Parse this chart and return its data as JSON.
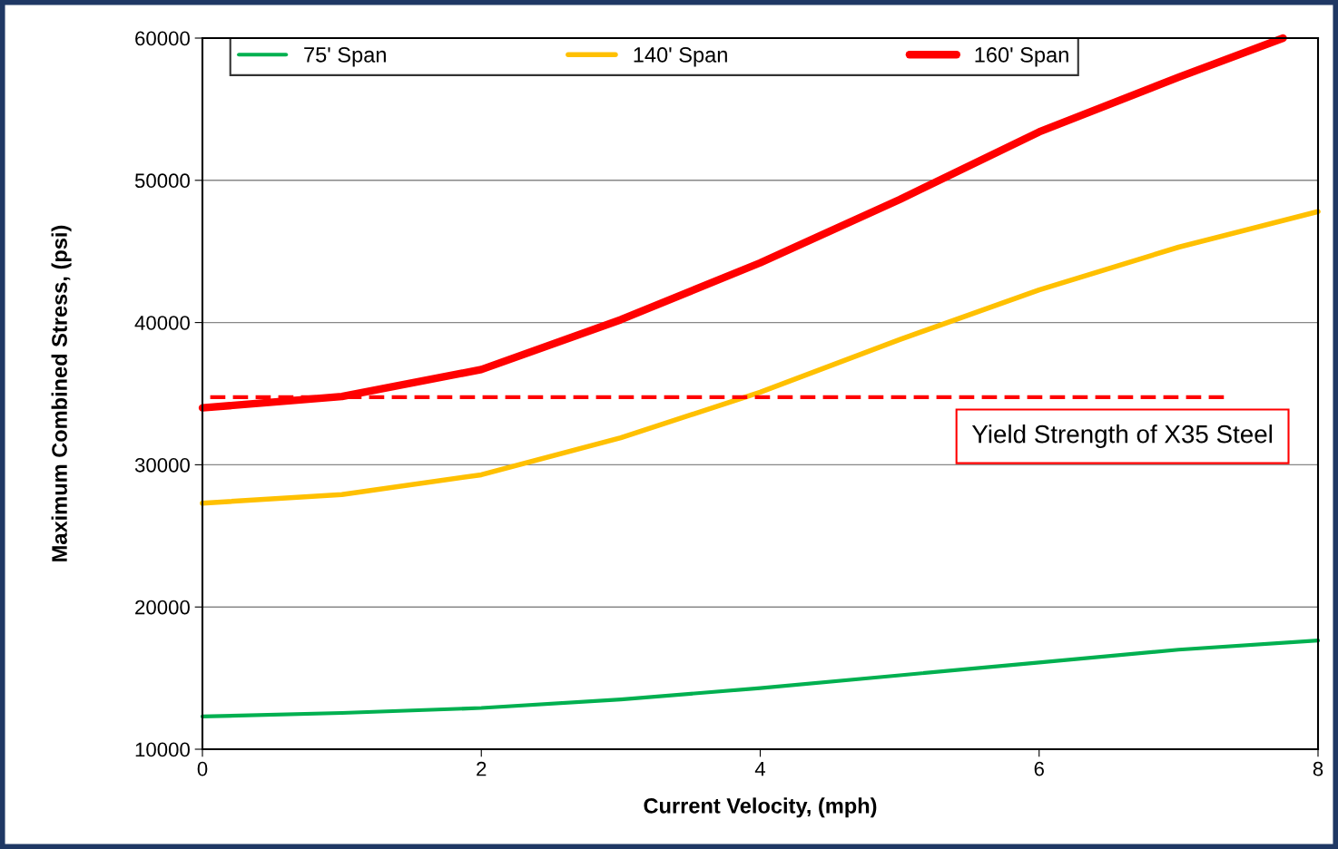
{
  "chart_data": {
    "type": "line",
    "xlabel": "Current Velocity, (mph)",
    "ylabel": "Maximum Combined Stress, (psi)",
    "xlim": [
      0,
      8
    ],
    "xticks": [
      0,
      2,
      4,
      6,
      8
    ],
    "ylim": [
      10000,
      60000
    ],
    "yticks": [
      10000,
      20000,
      30000,
      40000,
      50000,
      60000
    ],
    "grid": "y",
    "legend": "top",
    "marker": "none",
    "line_style": "solid",
    "series": [
      {
        "name": "75' Span",
        "color": "#00b050",
        "x": [
          0,
          1,
          2,
          3,
          4,
          5,
          6,
          7,
          8
        ],
        "values": [
          12300,
          12550,
          12900,
          13500,
          14300,
          15200,
          16100,
          17000,
          17650
        ]
      },
      {
        "name": "140' Span",
        "color": "#ffc000",
        "x": [
          0,
          1,
          2,
          3,
          4,
          5,
          6,
          7,
          8
        ],
        "values": [
          27300,
          27900,
          29300,
          31900,
          35100,
          38800,
          42300,
          45300,
          47800
        ]
      },
      {
        "name": "160' Span",
        "color": "#ff0000",
        "x": [
          0,
          1,
          2,
          3,
          4,
          5,
          6,
          7,
          7.75
        ],
        "values": [
          34000,
          34800,
          36700,
          40200,
          44200,
          48650,
          53400,
          57250,
          60000
        ]
      }
    ],
    "ref_lines": [
      {
        "axis": "y",
        "value": 34750,
        "label": "Yield Strength of X35 Steel",
        "color": "#ff0000",
        "line_style": "dashed"
      }
    ]
  }
}
